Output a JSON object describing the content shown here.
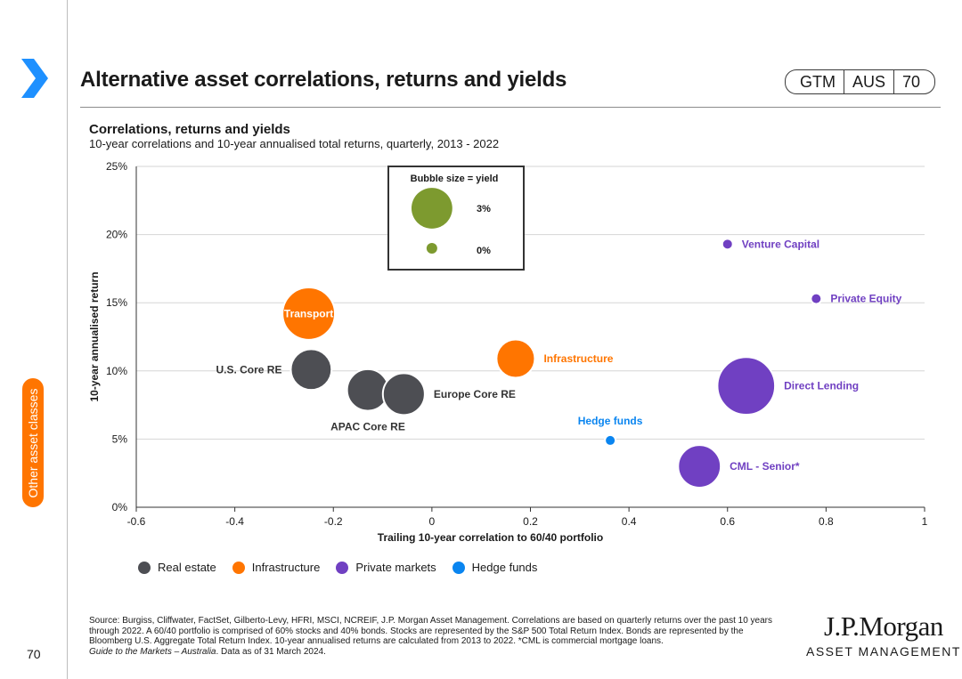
{
  "header": {
    "title": "Alternative asset correlations, returns and yields",
    "badge": [
      "GTM",
      "AUS",
      "70"
    ]
  },
  "side_tab": "Other asset classes",
  "page_number": "70",
  "colors": {
    "real_estate": "#4d4e53",
    "infrastructure": "#ff7500",
    "private_markets": "#7040c2",
    "hedge_funds": "#0a85f0",
    "size_legend": "#7d9a2f",
    "accent": "#1e90ff",
    "side_tab": "#ff7500"
  },
  "chart_data": {
    "type": "scatter",
    "subtype": "bubble",
    "title": "Correlations, returns and yields",
    "subtitle": "10-year correlations and 10-year annualised total returns, quarterly, 2013 - 2022",
    "xlabel": "Trailing 10-year correlation to 60/40 portfolio",
    "ylabel": "10-year annualised return",
    "xlim": [
      -0.6,
      1
    ],
    "ylim": [
      0,
      25
    ],
    "xticks": [
      -0.6,
      -0.4,
      -0.2,
      0,
      0.2,
      0.4,
      0.6,
      0.8,
      1
    ],
    "xtick_labels": [
      "-0.6",
      "-0.4",
      "-0.2",
      "0",
      "0.2",
      "0.4",
      "0.6",
      "0.8",
      "1"
    ],
    "yticks": [
      0,
      5,
      10,
      15,
      20,
      25
    ],
    "ytick_labels": [
      "0%",
      "5%",
      "10%",
      "15%",
      "20%",
      "25%"
    ],
    "grid": "horizontal",
    "size_legend": {
      "title": "Bubble size = yield",
      "entries": [
        {
          "label": "3%",
          "yield": 3.0
        },
        {
          "label": "0%",
          "yield": 0.0
        }
      ]
    },
    "series": [
      {
        "name": "Real estate",
        "key": "real_estate"
      },
      {
        "name": "Infrastructure",
        "key": "infrastructure"
      },
      {
        "name": "Private markets",
        "key": "private_markets"
      },
      {
        "name": "Hedge funds",
        "key": "hedge_funds"
      }
    ],
    "points": [
      {
        "label": "U.S. Core RE",
        "series": "real_estate",
        "x": -0.245,
        "y": 10.1,
        "yield": 3.0,
        "label_pos": "left",
        "inside": false
      },
      {
        "label": "APAC Core RE",
        "series": "real_estate",
        "x": -0.13,
        "y": 8.6,
        "yield": 3.2,
        "label_pos": "below",
        "inside": false
      },
      {
        "label": "Europe Core RE",
        "series": "real_estate",
        "x": -0.057,
        "y": 8.3,
        "yield": 3.3,
        "label_pos": "right",
        "inside": false
      },
      {
        "label": "Transport",
        "series": "infrastructure",
        "x": -0.25,
        "y": 14.2,
        "yield": 6.8,
        "label_pos": "center",
        "inside": true
      },
      {
        "label": "Infrastructure",
        "series": "infrastructure",
        "x": 0.17,
        "y": 10.9,
        "yield": 2.4,
        "label_pos": "right",
        "inside": false
      },
      {
        "label": "Venture Capital",
        "series": "private_markets",
        "x": 0.6,
        "y": 19.3,
        "yield": 0.0,
        "label_pos": "right",
        "inside": false
      },
      {
        "label": "Private Equity",
        "series": "private_markets",
        "x": 0.78,
        "y": 15.3,
        "yield": 0.0,
        "label_pos": "right",
        "inside": false
      },
      {
        "label": "Direct Lending",
        "series": "private_markets",
        "x": 0.638,
        "y": 8.9,
        "yield": 9.0,
        "label_pos": "right",
        "inside": false
      },
      {
        "label": "CML - Senior*",
        "series": "private_markets",
        "x": 0.543,
        "y": 3.0,
        "yield": 3.5,
        "label_pos": "right",
        "inside": false
      },
      {
        "label": "Hedge funds",
        "series": "hedge_funds",
        "x": 0.362,
        "y": 4.9,
        "yield": 0.0,
        "label_pos": "above",
        "inside": false
      }
    ]
  },
  "legend": [
    {
      "label": "Real estate",
      "color_key": "real_estate"
    },
    {
      "label": "Infrastructure",
      "color_key": "infrastructure"
    },
    {
      "label": "Private markets",
      "color_key": "private_markets"
    },
    {
      "label": "Hedge funds",
      "color_key": "hedge_funds"
    }
  ],
  "footer": {
    "source": "Source: Burgiss, Cliffwater, FactSet, Gilberto-Levy, HFRI, MSCI, NCREIF, J.P. Morgan Asset Management. Correlations are based on quarterly returns over the past 10 years through 2022. A 60/40 portfolio is comprised of 60% stocks and 40% bonds. Stocks are represented by the S&P 500 Total Return Index. Bonds are represented by the Bloomberg U.S. Aggregate Total Return Index. 10-year annualised returns are calculated from 2013 to 2022. *CML is commercial mortgage loans.",
    "guide": "Guide to the Markets – Australia",
    "date_note": ". Data as of 31 March 2024."
  },
  "logo": {
    "line1": "J.P.Morgan",
    "line2": "ASSET MANAGEMENT"
  }
}
